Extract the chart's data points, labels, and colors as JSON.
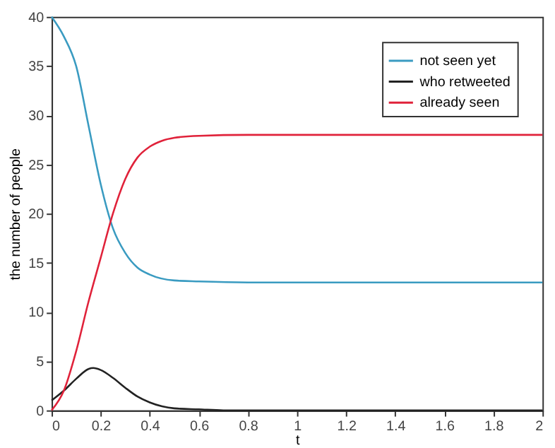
{
  "chart_data": {
    "type": "line",
    "xlabel": "t",
    "ylabel": "the number of people",
    "xlim": [
      0,
      2
    ],
    "xticks": [
      0,
      0.2,
      0.4,
      0.6,
      0.8,
      1,
      1.2,
      1.4,
      1.6,
      1.8,
      2
    ],
    "ylim": [
      0,
      40
    ],
    "yticks": [
      0,
      5,
      10,
      15,
      20,
      25,
      30,
      35,
      40
    ],
    "grid": false,
    "legend": "top right",
    "marker": "none",
    "line_style": "solid",
    "series": [
      {
        "name": "not seen yet",
        "color": "#3a9bc1",
        "x": [
          0,
          0.05,
          0.1,
          0.15,
          0.2,
          0.25,
          0.3,
          0.35,
          0.4,
          0.5,
          0.6,
          0.8,
          1,
          2
        ],
        "values": [
          40,
          38,
          35,
          29,
          23,
          18.5,
          16,
          14.5,
          13.8,
          13.2,
          13.1,
          13,
          13,
          13
        ]
      },
      {
        "name": "who retweeted",
        "color": "#222222",
        "x": [
          0,
          0.05,
          0.1,
          0.15,
          0.17,
          0.2,
          0.25,
          0.3,
          0.35,
          0.4,
          0.45,
          0.5,
          0.6,
          0.7,
          1,
          2
        ],
        "values": [
          1,
          2,
          3.2,
          4.2,
          4.3,
          4.1,
          3.3,
          2.3,
          1.4,
          0.8,
          0.4,
          0.2,
          0.1,
          0,
          0,
          0
        ]
      },
      {
        "name": "already seen",
        "color": "#e0223a",
        "x": [
          0,
          0.05,
          0.1,
          0.15,
          0.2,
          0.25,
          0.3,
          0.35,
          0.4,
          0.45,
          0.5,
          0.6,
          0.8,
          1,
          2
        ],
        "values": [
          0,
          2,
          6,
          11,
          15.5,
          20,
          23.5,
          25.7,
          26.8,
          27.4,
          27.7,
          27.9,
          28,
          28,
          28
        ]
      }
    ]
  }
}
